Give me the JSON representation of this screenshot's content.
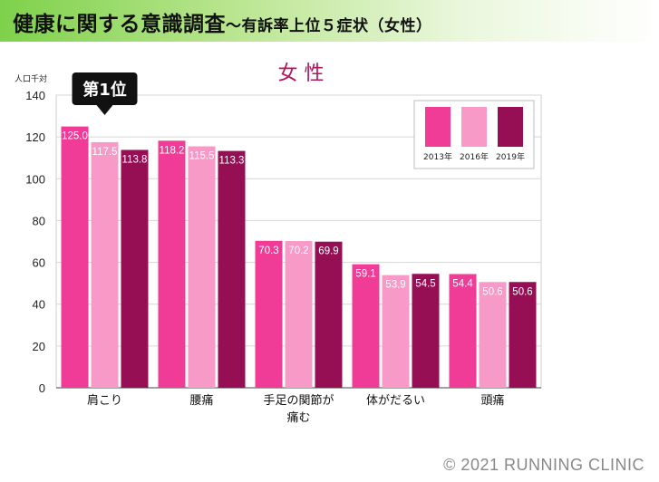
{
  "header": {
    "title": "健康に関する意識調査",
    "subtitle": "～有訴率上位５症状（女性）"
  },
  "footer": {
    "copyright": "© 2021 RUNNING  CLINIC"
  },
  "colors": {
    "2013年": "#f03c96",
    "2016年": "#f79ac8",
    "2019年": "#960f55",
    "title": "#b0175e",
    "banner_start": "#7ed14a"
  },
  "chart_data": {
    "type": "bar",
    "title": "女 性",
    "ylabel": "人口千対",
    "xlabel": "",
    "ylim": [
      0,
      140
    ],
    "yticks": [
      0,
      20,
      40,
      60,
      80,
      100,
      120,
      140
    ],
    "grid": true,
    "legend_position": "top-right",
    "categories": [
      "肩こり",
      "腰痛",
      "手足の関節が痛む",
      "体がだるい",
      "頭痛"
    ],
    "category_labels": [
      [
        "肩こり"
      ],
      [
        "腰痛"
      ],
      [
        "手足の関節が",
        "痛む"
      ],
      [
        "体がだるい"
      ],
      [
        "頭痛"
      ]
    ],
    "series": [
      {
        "name": "2013年",
        "values": [
          125.0,
          118.2,
          70.3,
          59.1,
          54.4
        ]
      },
      {
        "name": "2016年",
        "values": [
          117.5,
          115.5,
          70.2,
          53.9,
          50.6
        ]
      },
      {
        "name": "2019年",
        "values": [
          113.8,
          113.3,
          69.9,
          54.5,
          50.6
        ]
      }
    ],
    "annotation": {
      "text": "第1位",
      "category": "肩こり"
    }
  }
}
